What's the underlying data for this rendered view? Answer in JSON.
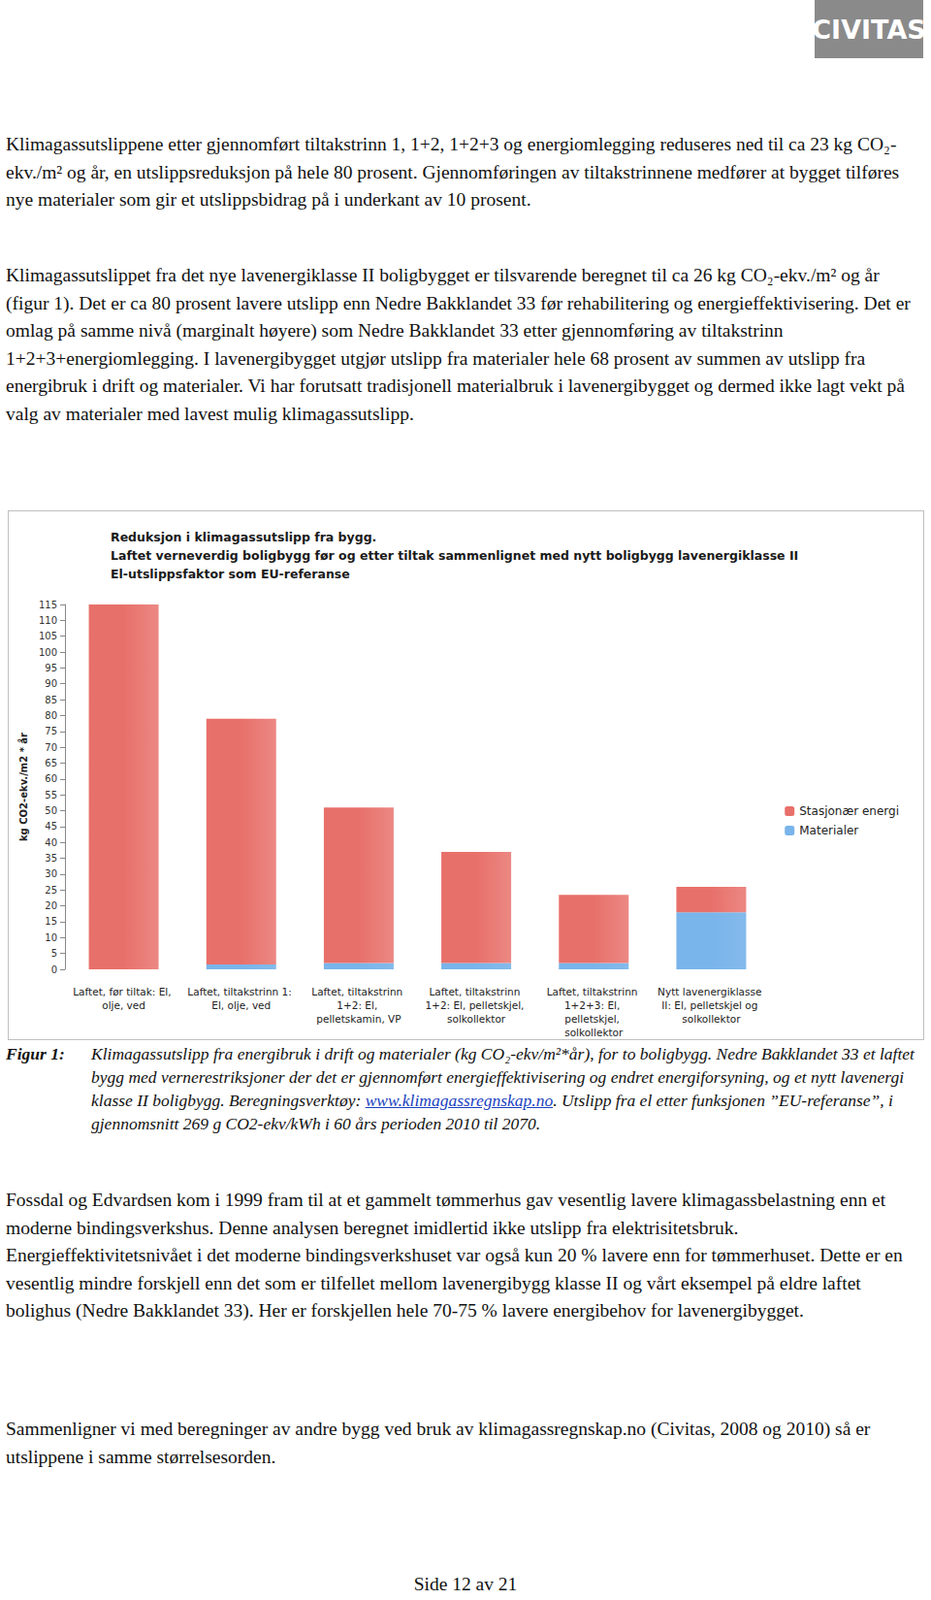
{
  "logo": "CIVITAS",
  "paragraphs_before": [
    "Klimagassutslippene etter gjennomført tiltakstrinn 1, 1+2, 1+2+3 og energiomlegging reduseres ned til ca 23 kg CO₂-ekv./m² og år, en utslippsreduksjon på hele 80 prosent. Gjennomføringen av tiltakstrinnene medfører at bygget tilføres nye materialer som gir et utslippsbidrag på i underkant av 10 prosent.",
    "Klimagassutslippet fra det nye lavenergiklasse II boligbygget er tilsvarende beregnet til ca 26 kg CO₂-ekv./m² og år (figur 1). Det er ca 80 prosent lavere utslipp enn Nedre Bakklandet 33 før rehabilitering og energieffektivisering. Det er omlag på samme nivå (marginalt høyere) som Nedre Bakklandet 33 etter gjennomføring av tiltakstrinn 1+2+3+energiomlegging. I lavenergibygget utgjør utslipp fra materialer hele 68 prosent av summen av utslipp fra energibruk i drift og materialer. Vi har forutsatt tradisjonell materialbruk i lavenergibygget og dermed ikke lagt vekt på valg av materialer med lavest mulig klimagassutslipp."
  ],
  "chart_data": {
    "type": "bar",
    "title": "Reduksjon i klimagassutslipp fra bygg.",
    "subtitle": [
      "Laftet verneverdig boligbygg før og etter tiltak sammenlignet med nytt boligbygg lavenergiklasse II",
      "El-utslippsfaktor som EU-referanse"
    ],
    "y_label": "kg CO2-ekv./m2 * år",
    "categories": [
      "Laftet, før tiltak: El, olje, ved",
      "Laftet, tiltakstrinn 1: El, olje, ved",
      "Laftet, tiltakstrinn 1+2: El, pelletskamin, VP",
      "Laftet, tiltakstrinn 1+2: El, pelletskjel, solkollektor",
      "Laftet, tiltakstrinn 1+2+3: El, pelletskjel, solkollektor",
      "Nytt lavenergiklasse II: El, pelletskjel og solkollektor"
    ],
    "series": [
      {
        "name": "Stasjonær energi",
        "color": "#e8706a",
        "values": [
          115,
          77.5,
          49,
          35,
          21.5,
          8
        ]
      },
      {
        "name": "Materialer",
        "color": "#79b4ea",
        "values": [
          0,
          1.5,
          2,
          2,
          2,
          18
        ]
      }
    ],
    "stacked": true,
    "ylim": [
      0,
      115
    ],
    "yticks": [
      0,
      5,
      10,
      15,
      20,
      25,
      30,
      35,
      40,
      45,
      50,
      55,
      60,
      65,
      70,
      75,
      80,
      85,
      90,
      95,
      100,
      105,
      110,
      115
    ],
    "grid": false,
    "legend": "right"
  },
  "caption": {
    "label": "Figur 1:",
    "text_before_link": "Klimagassutslipp fra energibruk i drift og materialer (kg CO₂-ekv/m²*år), for to boligbygg. Nedre Bakklandet 33 et laftet bygg med vernerestriksjoner der det er gjennomført energieffektivisering og endret energiforsyning, og et nytt lavenergi klasse II boligbygg. Beregningsverktøy: ",
    "link": "www.klimagassregnskap.no",
    "text_after_link": ". Utslipp fra el etter funksjonen ”EU-referanse”, i gjennomsnitt 269 g CO2-ekv/kWh i 60 års perioden 2010 til 2070."
  },
  "paragraphs_after": [
    "Fossdal og Edvardsen kom i 1999 fram til at et gammelt tømmerhus gav vesentlig lavere klimagassbelastning enn et moderne bindingsverkshus. Denne analysen beregnet imidlertid ikke utslipp fra elektrisitetsbruk. Energieffektivitetsnivået i det moderne bindingsverkshuset var også kun 20 % lavere enn for tømmerhuset. Dette er en vesentlig mindre forskjell enn det som er tilfellet mellom lavenergibygg klasse II og vårt eksempel på eldre laftet bolighus (Nedre Bakklandet 33). Her er forskjellen hele 70-75 % lavere energibehov for lavenergibygget.",
    "Sammenligner vi med beregninger av andre bygg ved bruk av klimagassregnskap.no (Civitas, 2008 og 2010) så er utslippene i samme størrelsesorden."
  ],
  "footer": "Side 12 av 21"
}
